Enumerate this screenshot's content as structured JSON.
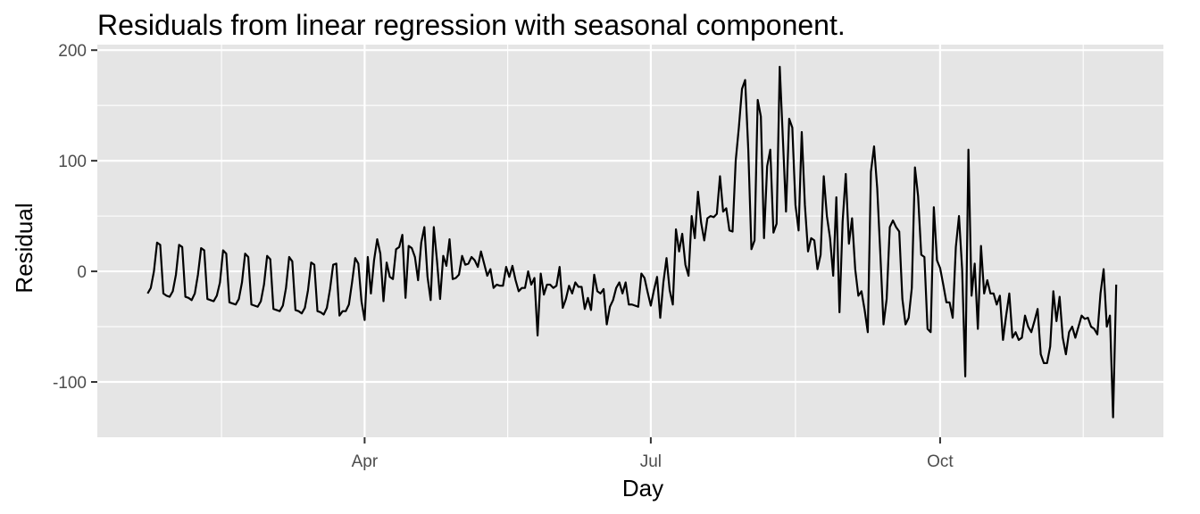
{
  "chart_data": {
    "type": "line",
    "title": "Residuals from linear regression with seasonal component.",
    "xlabel": "Day",
    "ylabel": "Residual",
    "x_start": "2020-01-23",
    "ylim": [
      -150,
      205
    ],
    "y_ticks": [
      {
        "value": 200,
        "label": "200"
      },
      {
        "value": 100,
        "label": "100"
      },
      {
        "value": 0,
        "label": "0"
      },
      {
        "value": -100,
        "label": "-100"
      }
    ],
    "x_ticks": [
      {
        "date": "2020-04-01",
        "label": "Apr"
      },
      {
        "date": "2020-07-01",
        "label": "Jul"
      },
      {
        "date": "2020-10-01",
        "label": "Oct"
      }
    ],
    "grid": true,
    "series": [
      {
        "values": [
          -20,
          -15,
          0,
          26,
          24,
          -20,
          -22,
          -23,
          -18,
          -3,
          24,
          22,
          -23,
          -24,
          -26,
          -20,
          -3,
          21,
          19,
          -25,
          -26,
          -27,
          -22,
          -10,
          19,
          16,
          -28,
          -29,
          -30,
          -25,
          -10,
          16,
          13,
          -30,
          -31,
          -32,
          -27,
          -12,
          14,
          11,
          -34,
          -35,
          -36,
          -31,
          -15,
          13,
          9,
          -35,
          -36,
          -38,
          -33,
          -17,
          8,
          6,
          -36,
          -37,
          -39,
          -33,
          -16,
          6,
          7,
          -40,
          -36,
          -36,
          -30,
          -10,
          12,
          7,
          -27,
          -44,
          13,
          -20,
          10,
          29,
          16,
          -27,
          8,
          -5,
          -7,
          20,
          22,
          33,
          -24,
          23,
          21,
          13,
          -8,
          26,
          40,
          -5,
          -26,
          40,
          10,
          -25,
          14,
          5,
          29,
          -7,
          -6,
          -3,
          14,
          6,
          7,
          13,
          10,
          4,
          18,
          7,
          -4,
          2,
          -15,
          -12,
          -13,
          -13,
          4,
          -5,
          5,
          -8,
          -18,
          -15,
          -15,
          0,
          -12,
          -6,
          -58,
          -2,
          -21,
          -12,
          -12,
          -15,
          -13,
          4,
          -33,
          -25,
          -13,
          -20,
          -10,
          -14,
          -14,
          -34,
          -24,
          -35,
          -3,
          -18,
          -20,
          -16,
          -48,
          -32,
          -26,
          -15,
          -10,
          -20,
          -10,
          -30,
          -30,
          -31,
          -32,
          -2,
          -6,
          -19,
          -31,
          -17,
          -5,
          -42,
          -10,
          12,
          -17,
          -30,
          38,
          18,
          34,
          6,
          -4,
          50,
          30,
          72,
          44,
          28,
          48,
          50,
          49,
          52,
          86,
          54,
          57,
          37,
          36,
          100,
          130,
          165,
          173,
          110,
          20,
          28,
          155,
          140,
          30,
          95,
          110,
          35,
          43,
          185,
          120,
          54,
          138,
          130,
          60,
          37,
          126,
          60,
          18,
          30,
          28,
          2,
          15,
          86,
          50,
          30,
          -4,
          67,
          -37,
          45,
          88,
          25,
          48,
          2,
          -22,
          -18,
          -35,
          -55,
          90,
          113,
          75,
          15,
          -48,
          -25,
          40,
          46,
          40,
          36,
          -25,
          -48,
          -42,
          -15,
          94,
          68,
          15,
          13,
          -52,
          -55,
          58,
          10,
          3,
          -12,
          -28,
          -28,
          -42,
          22,
          50,
          2,
          -95,
          110,
          -22,
          7,
          -52,
          23,
          -20,
          -8,
          -20,
          -20,
          -30,
          -22,
          -62,
          -40,
          -20,
          -60,
          -55,
          -62,
          -60,
          -40,
          -50,
          -55,
          -45,
          -34,
          -75,
          -83,
          -83,
          -68,
          -18,
          -45,
          -23,
          -60,
          -75,
          -55,
          -50,
          -60,
          -50,
          -40,
          -43,
          -42,
          -50,
          -52,
          -57,
          -20,
          2,
          -50,
          -40,
          -132,
          -12
        ]
      }
    ]
  }
}
